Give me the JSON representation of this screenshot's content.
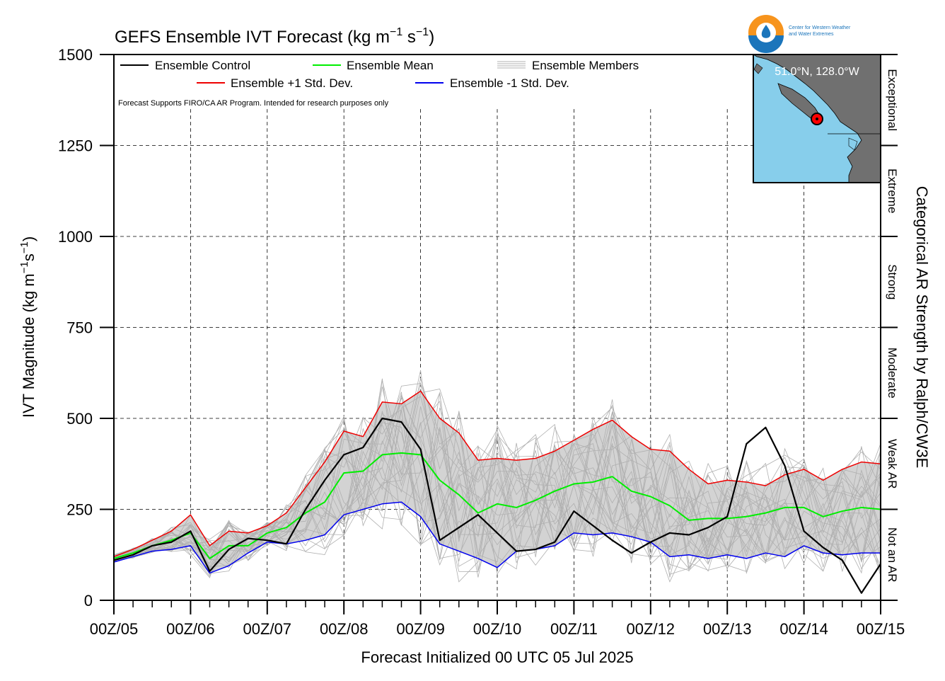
{
  "chart_data": {
    "type": "line",
    "title_main": "GEFS Ensemble IVT Forecast (kg m",
    "title_sup1": "−1",
    "title_mid": " s",
    "title_sup2": "−1",
    "title_end": ")",
    "ylabel_main": "IVT Magnitude (kg m",
    "ylabel_sup1": "−1",
    "ylabel_mid": "s",
    "ylabel_sup2": "−1",
    "ylabel_end": ")",
    "xlabel": "Forecast Initialized 00 UTC 05 Jul 2025",
    "right_label": "Categorical AR Strength by Ralph/CW3E",
    "ylim": [
      0,
      1500
    ],
    "xlim": [
      0,
      240
    ],
    "y_ticks": [
      0,
      250,
      500,
      750,
      1000,
      1250,
      1500
    ],
    "y_tick_labels": [
      "0",
      "250",
      "500",
      "750",
      "1000",
      "1250",
      "1500"
    ],
    "x_ticks": [
      0,
      24,
      48,
      72,
      96,
      120,
      144,
      168,
      192,
      216,
      240
    ],
    "x_tick_labels": [
      "00Z/05",
      "00Z/06",
      "00Z/07",
      "00Z/08",
      "00Z/09",
      "00Z/10",
      "00Z/11",
      "00Z/12",
      "00Z/13",
      "00Z/14",
      "00Z/15"
    ],
    "categories": [
      {
        "label": "Not an AR",
        "ymin": 0,
        "ymax": 250
      },
      {
        "label": "Weak AR",
        "ymin": 250,
        "ymax": 500
      },
      {
        "label": "Moderate",
        "ymin": 500,
        "ymax": 750
      },
      {
        "label": "Strong",
        "ymin": 750,
        "ymax": 1000
      },
      {
        "label": "Extreme",
        "ymin": 1000,
        "ymax": 1250
      },
      {
        "label": "Exceptional",
        "ymin": 1250,
        "ymax": 1500
      }
    ],
    "legend": {
      "placement": "top-left",
      "control": "Ensemble Control",
      "mean": "Ensemble Mean",
      "members": "Ensemble Members",
      "plus": "Ensemble +1 Std. Dev.",
      "minus": "Ensemble -1 Std. Dev."
    },
    "note": "Forecast Supports FIRO/CA AR Program. Intended for research purposes only",
    "location": "51.0°N, 128.0°W",
    "colors": {
      "control": "#000000",
      "mean": "#00ee00",
      "plus": "#ee0000",
      "minus": "#0000ee",
      "members": "#b0b0b0",
      "spread": "#d3d3d3",
      "map_ocean": "#87ceeb",
      "map_land": "#707070",
      "marker": "#ff0000"
    },
    "x": [
      0,
      6,
      12,
      18,
      24,
      30,
      36,
      42,
      48,
      54,
      60,
      66,
      72,
      78,
      84,
      90,
      96,
      102,
      108,
      114,
      120,
      126,
      132,
      138,
      144,
      150,
      156,
      162,
      168,
      174,
      180,
      186,
      192,
      198,
      204,
      210,
      216,
      222,
      228,
      234,
      240
    ],
    "series": [
      {
        "name": "Ensemble Control",
        "key": "control",
        "values": [
          110,
          125,
          150,
          160,
          190,
          80,
          140,
          170,
          165,
          155,
          250,
          330,
          400,
          420,
          500,
          490,
          415,
          165,
          200,
          235,
          185,
          135,
          140,
          160,
          245,
          205,
          165,
          130,
          160,
          185,
          180,
          200,
          230,
          430,
          475,
          370,
          190,
          145,
          110,
          20,
          100
        ]
      },
      {
        "name": "Ensemble Mean",
        "key": "mean",
        "values": [
          115,
          130,
          150,
          165,
          185,
          115,
          150,
          150,
          185,
          200,
          240,
          270,
          350,
          355,
          400,
          405,
          400,
          330,
          290,
          240,
          265,
          255,
          275,
          300,
          320,
          325,
          340,
          300,
          285,
          260,
          220,
          225,
          225,
          230,
          240,
          255,
          255,
          230,
          245,
          255,
          250
        ]
      },
      {
        "name": "Ensemble +1 Std. Dev.",
        "key": "plus",
        "values": [
          120,
          140,
          165,
          190,
          235,
          150,
          190,
          185,
          205,
          240,
          310,
          380,
          465,
          450,
          545,
          540,
          575,
          500,
          460,
          385,
          390,
          385,
          390,
          410,
          440,
          470,
          495,
          450,
          415,
          410,
          360,
          320,
          330,
          325,
          315,
          345,
          360,
          330,
          360,
          380,
          375
        ]
      },
      {
        "name": "Ensemble -1 Std. Dev.",
        "key": "minus",
        "values": [
          105,
          120,
          135,
          140,
          150,
          75,
          95,
          130,
          160,
          155,
          165,
          180,
          235,
          250,
          265,
          270,
          230,
          155,
          135,
          115,
          90,
          135,
          140,
          150,
          185,
          180,
          185,
          175,
          160,
          120,
          125,
          115,
          125,
          115,
          130,
          120,
          150,
          130,
          125,
          130,
          130
        ]
      }
    ]
  }
}
